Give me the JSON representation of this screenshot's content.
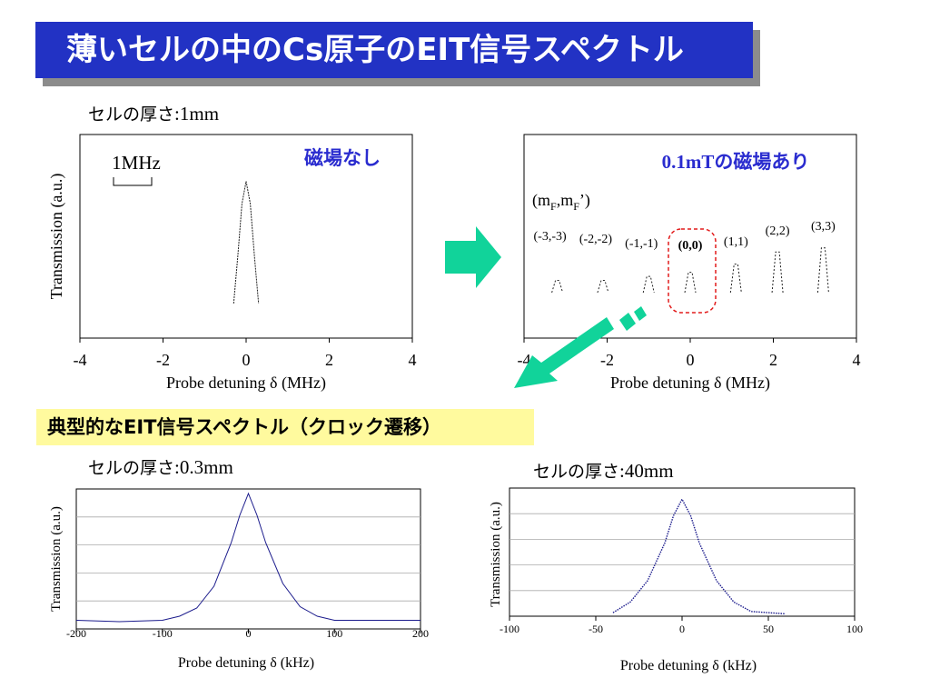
{
  "title": "薄いセルの中のCs原子のEIT信号スペクトル",
  "section_label": "典型的なEIT信号スペクトル（クロック遷移）",
  "colors": {
    "title_bg": "#2232c4",
    "title_shadow": "#8c8c8c",
    "band_bg": "#fffa9e",
    "annotation_blue": "#2a2ccf",
    "arrow_green": "#11d39a",
    "box_red": "#e21b1b",
    "trace_blue": "#1b1b8c"
  },
  "panels": {
    "top_left": {
      "thickness_label": "セルの厚さ",
      "thickness_sep": ":",
      "thickness_value": "1mm",
      "annotation": "磁場なし",
      "scale_label": "1MHz"
    },
    "top_right": {
      "annotation": "0.1mTの磁場あり",
      "mf_header": "(mF,mF')"
    },
    "bottom_left": {
      "thickness_label": "セルの厚さ",
      "thickness_sep": ":",
      "thickness_value": "0.3mm"
    },
    "bottom_right": {
      "thickness_label": "セルの厚さ",
      "thickness_sep": ":",
      "thickness_value": "40mm"
    }
  },
  "chart_data": [
    {
      "id": "top_left",
      "type": "line",
      "ylabel": "Transmission (a.u.)",
      "xlabel": "Probe detuning δ (MHz)",
      "xlim": [
        -4,
        4
      ],
      "xticks": [
        -4,
        -2,
        0,
        2,
        4
      ],
      "xtick_labels": [
        "-4",
        "-2",
        "0",
        "2",
        "4"
      ],
      "grid": false,
      "series": [
        {
          "x": [
            -0.3,
            -0.2,
            -0.1,
            0,
            0.1,
            0.2,
            0.3
          ],
          "y": [
            0.17,
            0.4,
            0.66,
            0.77,
            0.66,
            0.4,
            0.17
          ]
        }
      ]
    },
    {
      "id": "top_right",
      "type": "line",
      "xlabel": "Probe detuning δ (MHz)",
      "xlim": [
        -4,
        4
      ],
      "xticks": [
        -4,
        -2,
        0,
        2,
        4
      ],
      "xtick_labels": [
        "-4",
        "-2",
        "0",
        "2",
        "4"
      ],
      "grid": false,
      "peaks": [
        {
          "label": "(-3,-3)",
          "center": -3.2,
          "height": 0.06
        },
        {
          "label": "(-2,-2)",
          "center": -2.1,
          "height": 0.06
        },
        {
          "label": "(-1,-1)",
          "center": -1.0,
          "height": 0.08
        },
        {
          "label": "(0,0)",
          "center": 0.0,
          "height": 0.1,
          "highlighted": true
        },
        {
          "label": "(1,1)",
          "center": 1.1,
          "height": 0.14
        },
        {
          "label": "(2,2)",
          "center": 2.1,
          "height": 0.2
        },
        {
          "label": "(3,3)",
          "center": 3.2,
          "height": 0.22
        }
      ]
    },
    {
      "id": "bottom_left",
      "type": "line",
      "ylabel": "Transmission (a.u.)",
      "xlabel": "Probe detuning δ (kHz)",
      "xlim": [
        -200,
        200
      ],
      "xticks": [
        -200,
        -100,
        0,
        100,
        200
      ],
      "xtick_labels": [
        "-200",
        "-100",
        "0",
        "100",
        "200"
      ],
      "grid": true,
      "series": [
        {
          "x": [
            -200,
            -150,
            -100,
            -80,
            -60,
            -40,
            -20,
            -10,
            0,
            10,
            20,
            40,
            60,
            80,
            100,
            150,
            200
          ],
          "y": [
            0.05,
            0.04,
            0.05,
            0.08,
            0.14,
            0.3,
            0.62,
            0.82,
            0.98,
            0.82,
            0.62,
            0.32,
            0.15,
            0.08,
            0.05,
            0.05,
            0.05
          ]
        }
      ]
    },
    {
      "id": "bottom_right",
      "type": "line",
      "ylabel": "Transmission (a.u.)",
      "xlabel": "Probe detuning δ (kHz)",
      "xlim": [
        -100,
        100
      ],
      "xticks": [
        -100,
        -50,
        0,
        50,
        100
      ],
      "xtick_labels": [
        "-100",
        "-50",
        "0",
        "50",
        "100"
      ],
      "grid": true,
      "series": [
        {
          "x": [
            -40,
            -30,
            -20,
            -10,
            -5,
            0,
            5,
            10,
            20,
            30,
            40,
            60
          ],
          "y": [
            0.03,
            0.12,
            0.3,
            0.62,
            0.85,
            0.99,
            0.85,
            0.62,
            0.3,
            0.12,
            0.04,
            0.02
          ]
        }
      ]
    }
  ]
}
